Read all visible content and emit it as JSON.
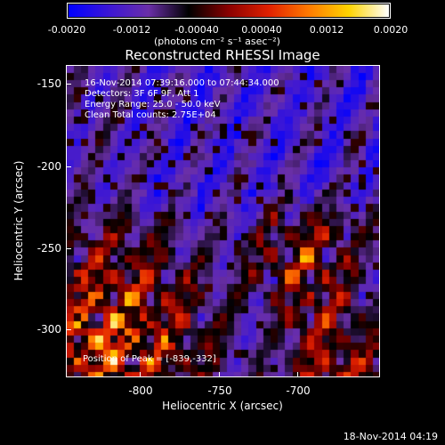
{
  "colorbar": {
    "tick_labels": [
      "-0.0020",
      "-0.0012",
      "-0.00040",
      "0.00040",
      "0.0012",
      "0.0020"
    ],
    "units": "(photons cm⁻² s⁻¹ asec⁻²)",
    "colors": [
      "#0000ff",
      "#3b16d6",
      "#6a2fa8",
      "#000000",
      "#8a0000",
      "#e02000",
      "#ff7a00",
      "#ffd400",
      "#ffffff"
    ]
  },
  "title": "Reconstructed RHESSI Image",
  "annotations": {
    "time_range": "16-Nov-2014 07:39:16.000 to 07:44:34.000",
    "detectors": "Detectors: 3F 6F 9F, Att 1",
    "energy_range": "Energy Range: 25.0 - 50.0 keV",
    "clean_counts": "Clean    Total counts: 2.75E+04",
    "peak_position": "Position of Peak = [-839,-332]"
  },
  "axes": {
    "x_label": "Heliocentric X (arcsec)",
    "y_label": "Heliocentric Y (arcsec)",
    "x_ticks": [
      "-800",
      "-750",
      "-700"
    ],
    "y_ticks": [
      "-150",
      "-200",
      "-250",
      "-300"
    ]
  },
  "timestamp": "18-Nov-2014 04:19"
}
